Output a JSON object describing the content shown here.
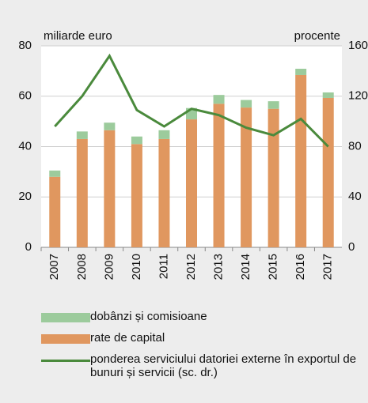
{
  "chart_data": {
    "type": "bar-line",
    "y_label": "miliarde euro",
    "y2_label": "procente",
    "categories": [
      "2007",
      "2008",
      "2009",
      "2010",
      "2011",
      "2012",
      "2013",
      "2014",
      "2015",
      "2016",
      "2017"
    ],
    "series": [
      {
        "name": "dobânzi și comisioane",
        "type": "bar",
        "color": "#9ccb9c",
        "values": [
          2.5,
          3,
          3,
          3,
          3.5,
          4.5,
          3.5,
          3,
          3,
          2.5,
          2.2
        ]
      },
      {
        "name": "rate de capital",
        "type": "bar",
        "color": "#e0975f",
        "values": [
          28,
          43,
          46.5,
          41,
          43,
          50.8,
          57,
          55.5,
          55,
          68.4,
          59.3
        ]
      },
      {
        "name": "ponderea serviciului datoriei externe în exportul de bunuri și servicii (sc. dr.)",
        "type": "line",
        "axis": "y2",
        "color": "#4a8a3c",
        "values": [
          96,
          120,
          152,
          109,
          96,
          110,
          105,
          95,
          89,
          102,
          80
        ]
      }
    ],
    "ylim": [
      0,
      80
    ],
    "yticks": [
      0,
      20,
      40,
      60,
      80
    ],
    "y2lim": [
      0,
      160
    ],
    "y2ticks": [
      0,
      40,
      80,
      120,
      160
    ],
    "grid": true
  }
}
